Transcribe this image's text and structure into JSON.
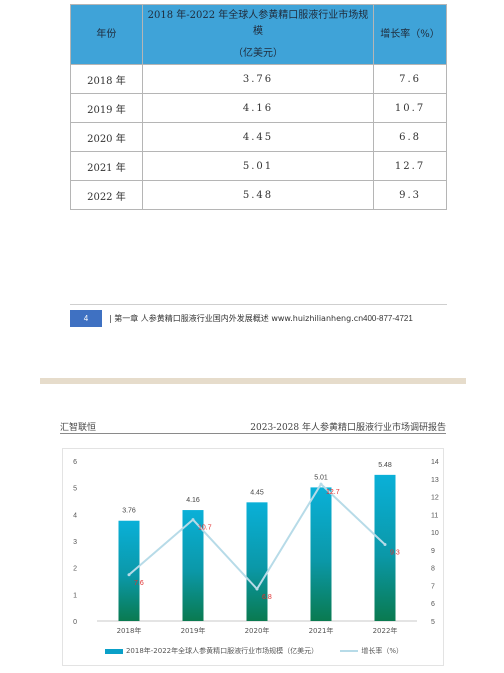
{
  "table": {
    "headers": {
      "year": "年份",
      "size_line1": "2018 年-2022 年全球人参黄精口服液行业市场规模",
      "size_line2": "（亿美元）",
      "growth": "增长率（%）"
    },
    "rows": [
      {
        "year": "2018 年",
        "size": "3.76",
        "growth": "7.6"
      },
      {
        "year": "2019 年",
        "size": "4.16",
        "growth": "10.7"
      },
      {
        "year": "2020 年",
        "size": "4.45",
        "growth": "6.8"
      },
      {
        "year": "2021 年",
        "size": "5.01",
        "growth": "12.7"
      },
      {
        "year": "2022 年",
        "size": "5.48",
        "growth": "9.3"
      }
    ]
  },
  "footer": {
    "page_number": "4",
    "text": "| 第一章 人参黄精口服液行业国内外发展概述 www.huizhilianheng.cn",
    "phone": "400-877-4721"
  },
  "header": {
    "left": "汇智联恒",
    "right": "2023-2028 年人参黄精口服液行业市场调研报告"
  },
  "colors": {
    "table_header": "#3fa3d8",
    "bar_top": "#0ab0d8",
    "bar_bottom": "#0a7a50",
    "line": "#b7dbe8",
    "growth_label": "#e03030",
    "footer_badge": "#3f71c2"
  },
  "chart_data": {
    "type": "bar",
    "categories": [
      "2018年",
      "2019年",
      "2020年",
      "2021年",
      "2022年"
    ],
    "series": [
      {
        "name": "2018年-2022年全球人参黄精口服液行业市场规模（亿美元）",
        "type": "bar",
        "axis": "left",
        "values": [
          3.76,
          4.16,
          4.45,
          5.01,
          5.48
        ],
        "labels": [
          "3.76",
          "4.16",
          "4.45",
          "5.01",
          "5.48"
        ]
      },
      {
        "name": "增长率（%）",
        "type": "line",
        "axis": "right",
        "values": [
          7.6,
          10.7,
          6.8,
          12.7,
          9.3
        ],
        "labels": [
          "7.6",
          "10.7",
          "6.8",
          "12.7",
          "9.3"
        ]
      }
    ],
    "y_left": {
      "min": 0,
      "max": 6,
      "ticks": [
        "0",
        "1",
        "2",
        "3",
        "4",
        "5",
        "6"
      ]
    },
    "y_right": {
      "min": 5,
      "max": 14,
      "ticks": [
        "5",
        "6",
        "7",
        "8",
        "9",
        "10",
        "11",
        "12",
        "13",
        "14"
      ]
    },
    "grid": false,
    "legend": "bottom"
  }
}
